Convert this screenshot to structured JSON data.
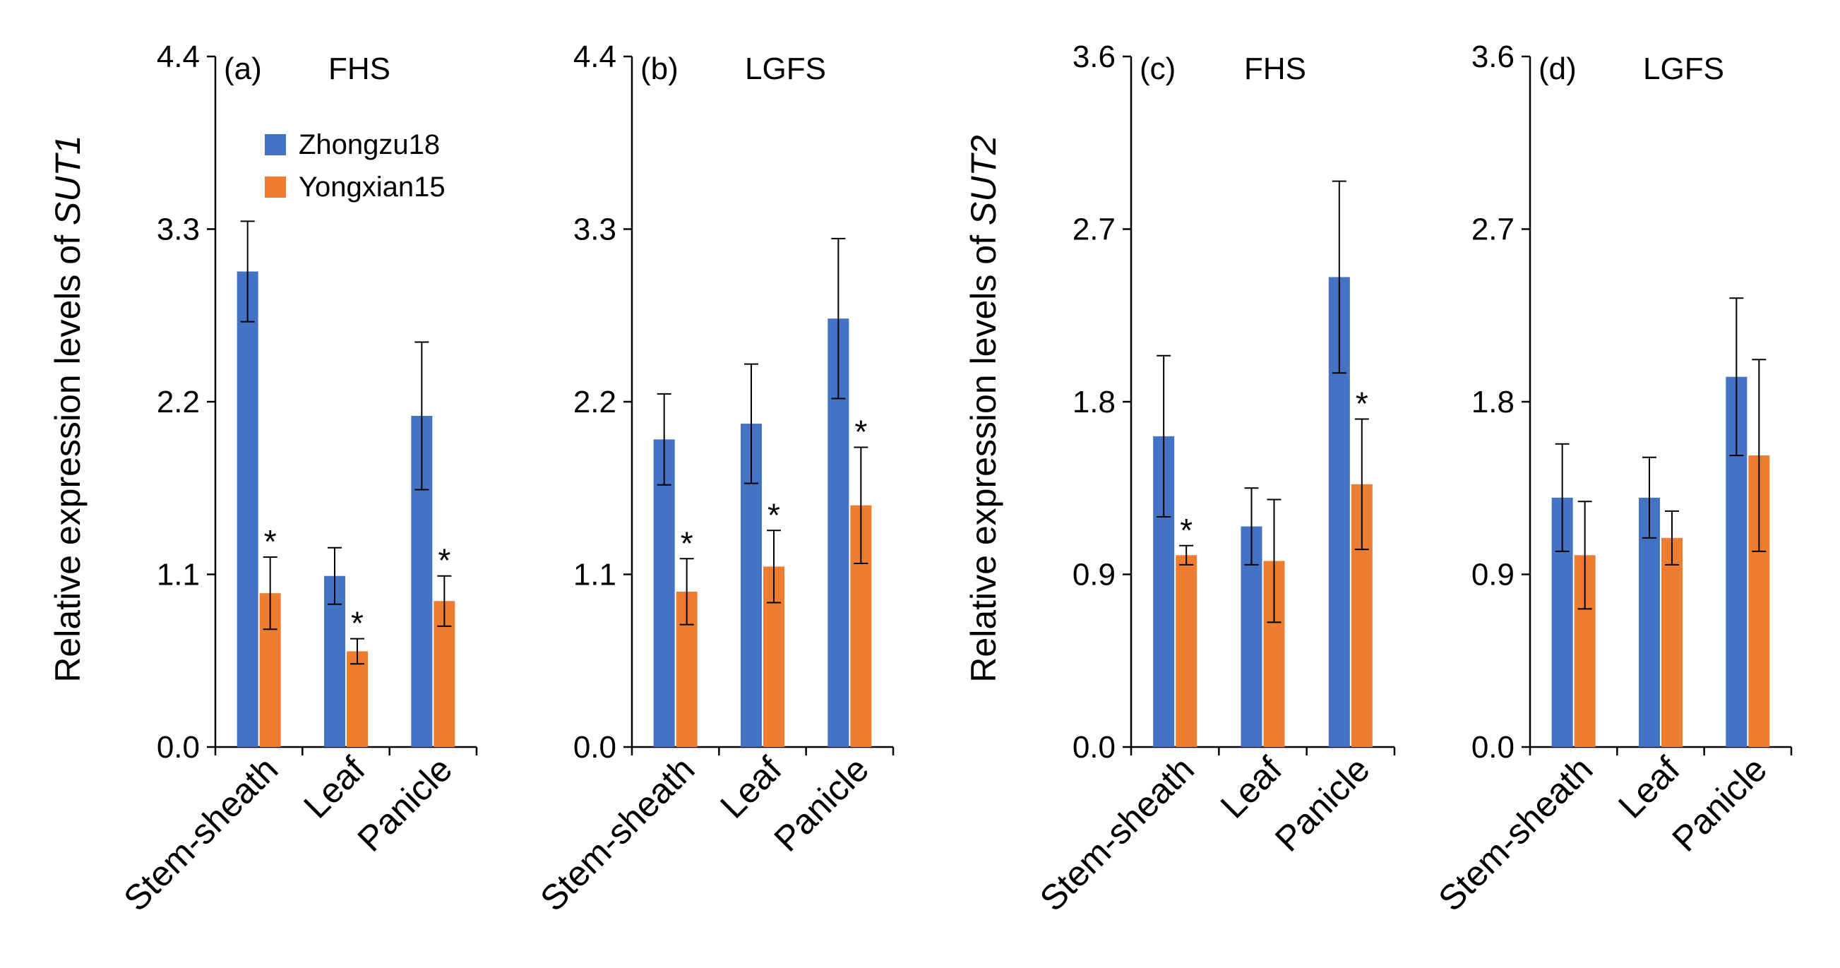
{
  "figure": {
    "series_names": [
      "Zhongzu18",
      "Yongxian15"
    ],
    "series_colors": [
      "#4472C4",
      "#ED7D31"
    ],
    "ylabel_prefix": "Relative expression levels of ",
    "categories": [
      "Stem-sheath",
      "Leaf",
      "Panicle"
    ]
  },
  "chart_data": [
    {
      "type": "bar",
      "panel": "(a)",
      "title": "FHS",
      "gene": "SUT1",
      "ylabel": "Relative expression levels of SUT1",
      "categories": [
        "Stem-sheath",
        "Leaf",
        "Panicle"
      ],
      "ylim": [
        0,
        4.4
      ],
      "yticks": [
        "0.0",
        "1.1",
        "2.2",
        "3.3",
        "4.4"
      ],
      "show_ylabel": true,
      "show_legend": true,
      "series": [
        {
          "name": "Zhongzu18",
          "values": [
            3.03,
            1.09,
            2.11
          ],
          "errors": [
            0.32,
            0.18,
            0.47
          ],
          "significant": [
            false,
            false,
            false
          ]
        },
        {
          "name": "Yongxian15",
          "values": [
            0.98,
            0.61,
            0.93
          ],
          "errors": [
            0.23,
            0.08,
            0.16
          ],
          "significant": [
            true,
            true,
            true
          ]
        }
      ]
    },
    {
      "type": "bar",
      "panel": "(b)",
      "title": "LGFS",
      "gene": "SUT1",
      "ylabel": "Relative expression levels of SUT1",
      "categories": [
        "Stem-sheath",
        "Leaf",
        "Panicle"
      ],
      "ylim": [
        0,
        4.4
      ],
      "yticks": [
        "0.0",
        "1.1",
        "2.2",
        "3.3",
        "4.4"
      ],
      "show_ylabel": false,
      "show_legend": false,
      "series": [
        {
          "name": "Zhongzu18",
          "values": [
            1.96,
            2.06,
            2.73
          ],
          "errors": [
            0.29,
            0.38,
            0.51
          ],
          "significant": [
            false,
            false,
            false
          ]
        },
        {
          "name": "Yongxian15",
          "values": [
            0.99,
            1.15,
            1.54
          ],
          "errors": [
            0.21,
            0.23,
            0.37
          ],
          "significant": [
            true,
            true,
            true
          ]
        }
      ]
    },
    {
      "type": "bar",
      "panel": "(c)",
      "title": "FHS",
      "gene": "SUT2",
      "ylabel": "Relative expression levels of SUT2",
      "categories": [
        "Stem-sheath",
        "Leaf",
        "Panicle"
      ],
      "ylim": [
        0,
        3.6
      ],
      "yticks": [
        "0.0",
        "0.9",
        "1.8",
        "2.7",
        "3.6"
      ],
      "show_ylabel": true,
      "show_legend": false,
      "series": [
        {
          "name": "Zhongzu18",
          "values": [
            1.62,
            1.15,
            2.45
          ],
          "errors": [
            0.42,
            0.2,
            0.5
          ],
          "significant": [
            false,
            false,
            false
          ]
        },
        {
          "name": "Yongxian15",
          "values": [
            1.0,
            0.97,
            1.37
          ],
          "errors": [
            0.05,
            0.32,
            0.34
          ],
          "significant": [
            true,
            false,
            true
          ]
        }
      ]
    },
    {
      "type": "bar",
      "panel": "(d)",
      "title": "LGFS",
      "gene": "SUT2",
      "ylabel": "Relative expression levels of SUT2",
      "categories": [
        "Stem-sheath",
        "Leaf",
        "Panicle"
      ],
      "ylim": [
        0,
        3.6
      ],
      "yticks": [
        "0.0",
        "0.9",
        "1.8",
        "2.7",
        "3.6"
      ],
      "show_ylabel": false,
      "show_legend": false,
      "series": [
        {
          "name": "Zhongzu18",
          "values": [
            1.3,
            1.3,
            1.93
          ],
          "errors": [
            0.28,
            0.21,
            0.41
          ],
          "significant": [
            false,
            false,
            false
          ]
        },
        {
          "name": "Yongxian15",
          "values": [
            1.0,
            1.09,
            1.52
          ],
          "errors": [
            0.28,
            0.14,
            0.5
          ],
          "significant": [
            false,
            false,
            false
          ]
        }
      ]
    }
  ]
}
